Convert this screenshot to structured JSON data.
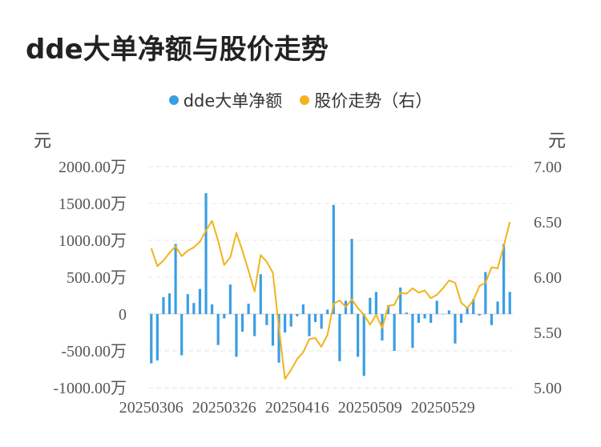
{
  "title": "dde大单净额与股价走势",
  "legend": {
    "bar_label": "dde大单净额",
    "line_label": "股价走势（右）"
  },
  "units": {
    "left": "元",
    "right": "元"
  },
  "colors": {
    "bar": "#3a9ee4",
    "line": "#f2b31b",
    "grid": "#e6e6e6"
  },
  "chart_data": {
    "type": "bar",
    "combo": "bar+line",
    "y_left": {
      "min": -1000,
      "max": 2000,
      "ticks": [
        -1000,
        -500,
        0,
        500,
        1000,
        1500,
        2000
      ],
      "tick_labels": [
        "-1000.00万",
        "-500.00万",
        "0",
        "500.00万",
        "1000.00万",
        "1500.00万",
        "2000.00万"
      ]
    },
    "y_right": {
      "min": 5.0,
      "max": 7.0,
      "ticks": [
        5.0,
        5.5,
        6.0,
        6.5,
        7.0
      ],
      "tick_labels": [
        "5.00",
        "5.50",
        "6.00",
        "6.50",
        "7.00"
      ]
    },
    "x_tick_labels": [
      "20250306",
      "20250326",
      "20250416",
      "20250509",
      "20250529"
    ],
    "x_tick_indices": [
      0,
      12,
      24,
      36,
      48
    ],
    "grid": true,
    "series": [
      {
        "name": "dde大单净额",
        "type": "bar",
        "axis": "left",
        "values": [
          -670,
          -630,
          230,
          280,
          950,
          -560,
          270,
          150,
          340,
          1640,
          130,
          -420,
          -60,
          400,
          -580,
          -240,
          140,
          -300,
          540,
          -150,
          -430,
          -660,
          -250,
          -170,
          -30,
          130,
          -300,
          -110,
          -200,
          60,
          1480,
          -640,
          180,
          1020,
          -580,
          -840,
          220,
          300,
          -360,
          120,
          -500,
          360,
          20,
          -460,
          -120,
          -60,
          -120,
          180,
          0,
          50,
          -400,
          -120,
          100,
          200,
          -20,
          570,
          -150,
          170,
          950,
          300
        ]
      },
      {
        "name": "股价走势（右）",
        "type": "line",
        "axis": "right",
        "values": [
          6.26,
          6.1,
          6.15,
          6.22,
          6.28,
          6.19,
          6.24,
          6.27,
          6.32,
          6.42,
          6.51,
          6.33,
          6.11,
          6.18,
          6.4,
          6.24,
          6.06,
          5.87,
          6.2,
          6.14,
          6.04,
          5.55,
          5.08,
          5.16,
          5.26,
          5.32,
          5.44,
          5.45,
          5.37,
          5.48,
          5.76,
          5.79,
          5.73,
          5.8,
          5.72,
          5.66,
          5.57,
          5.66,
          5.54,
          5.74,
          5.75,
          5.86,
          5.85,
          5.9,
          5.86,
          5.88,
          5.81,
          5.84,
          5.9,
          5.97,
          5.95,
          5.77,
          5.72,
          5.79,
          5.92,
          5.95,
          6.09,
          6.08,
          6.28,
          6.5
        ]
      }
    ]
  }
}
